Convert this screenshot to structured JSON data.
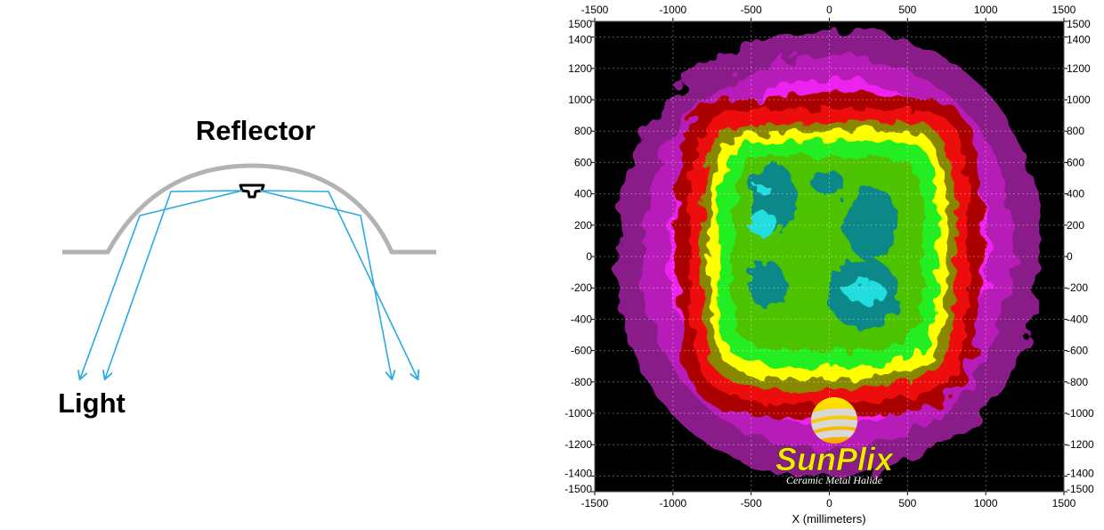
{
  "diagram": {
    "reflector_label": "Reflector",
    "light_label": "Light",
    "ray_color": "#29abe2",
    "reflector_color": "#b3b3b3"
  },
  "plot": {
    "type": "heatmap",
    "x_label": "X (millimeters)",
    "x_range": [
      -1500,
      1500
    ],
    "y_range": [
      -1500,
      1500
    ],
    "x_ticks": [
      "-1500",
      "-1000",
      "-500",
      "0",
      "500",
      "1000",
      "1500"
    ],
    "y_ticks": [
      "1500",
      "1400",
      "1200",
      "1000",
      "800",
      "600",
      "400",
      "200",
      "0",
      "-200",
      "-400",
      "-600",
      "-800",
      "-1000",
      "-1200",
      "-1400",
      "-1500"
    ],
    "grid": true,
    "colors": [
      "#000000",
      "#8a1a8a",
      "#b81cb8",
      "#ee22ee",
      "#aa0000",
      "#ee1111",
      "#888800",
      "#ffff00",
      "#55bb00",
      "#22ee22",
      "#118888",
      "#22dddd"
    ]
  },
  "logo": {
    "name": "SunPlix",
    "tagline": "Ceramic Metal Halide"
  }
}
